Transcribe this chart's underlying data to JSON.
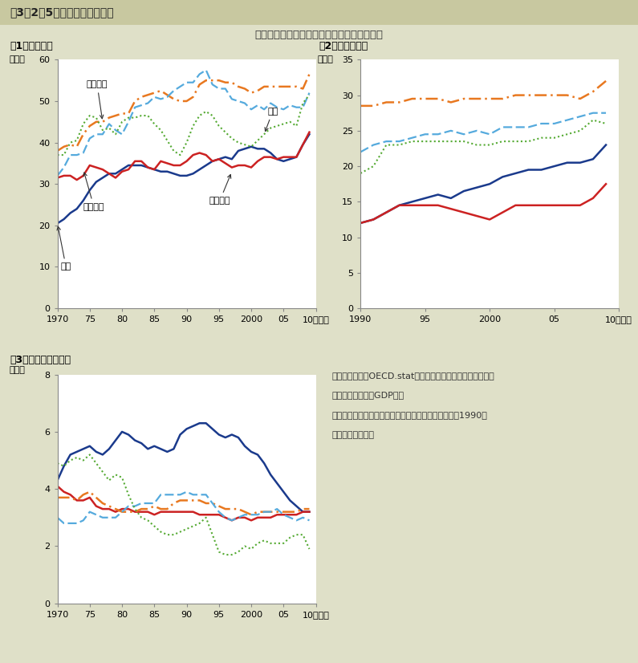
{
  "bg_color": "#dfe0c8",
  "title": "第3－2－5図　歳出の国際比較",
  "subtitle": "各国とも社会保障費を中心に歳出が増加傾向",
  "panel1_title": "（1）歳出総額",
  "panel2_title": "（2）社会保障費",
  "panel3_title": "（3）総固定資本形成",
  "ylabel_pct": "（％）",
  "xsuffix": "10（年）",
  "colors": {
    "japan": "#1a3a8c",
    "usa": "#cc2222",
    "france": "#e87820",
    "italy": "#55aadd",
    "uk": "#55aa33"
  },
  "labels": {
    "japan": "日本",
    "usa": "アメリカ",
    "france": "フランス",
    "italy": "イタリア",
    "uk": "英国"
  },
  "panel1": {
    "years": [
      1970,
      1971,
      1972,
      1973,
      1974,
      1975,
      1976,
      1977,
      1978,
      1979,
      1980,
      1981,
      1982,
      1983,
      1984,
      1985,
      1986,
      1987,
      1988,
      1989,
      1990,
      1991,
      1992,
      1993,
      1994,
      1995,
      1996,
      1997,
      1998,
      1999,
      2000,
      2001,
      2002,
      2003,
      2004,
      2005,
      2006,
      2007,
      2008,
      2009
    ],
    "japan": [
      20.5,
      21.5,
      23.0,
      24.0,
      26.0,
      28.5,
      30.5,
      31.5,
      32.5,
      32.5,
      33.5,
      34.5,
      34.5,
      34.5,
      34.0,
      33.5,
      33.0,
      33.0,
      32.5,
      32.0,
      32.0,
      32.5,
      33.5,
      34.5,
      35.5,
      36.0,
      36.5,
      36.0,
      38.0,
      38.5,
      39.0,
      38.5,
      38.5,
      37.5,
      36.0,
      35.5,
      36.0,
      36.5,
      39.5,
      42.0
    ],
    "usa": [
      31.5,
      32.0,
      32.0,
      31.0,
      32.0,
      34.5,
      34.0,
      33.5,
      32.5,
      31.5,
      33.0,
      33.5,
      35.5,
      35.5,
      34.0,
      33.5,
      35.5,
      35.0,
      34.5,
      34.5,
      35.5,
      37.0,
      37.5,
      37.0,
      35.5,
      36.0,
      35.0,
      34.0,
      34.5,
      34.5,
      34.0,
      35.5,
      36.5,
      36.5,
      36.0,
      36.5,
      36.5,
      36.5,
      39.5,
      42.5
    ],
    "france": [
      38.0,
      39.0,
      39.5,
      39.0,
      42.0,
      44.0,
      45.0,
      45.0,
      46.0,
      46.5,
      47.0,
      47.0,
      50.0,
      51.0,
      51.5,
      52.0,
      52.5,
      51.5,
      50.5,
      50.0,
      50.0,
      51.0,
      54.0,
      55.0,
      55.0,
      55.0,
      54.5,
      54.5,
      53.5,
      53.0,
      52.0,
      52.5,
      53.5,
      53.5,
      53.5,
      53.5,
      53.5,
      53.5,
      53.0,
      56.5
    ],
    "italy": [
      32.0,
      34.0,
      37.0,
      37.0,
      37.5,
      41.0,
      42.0,
      42.0,
      44.5,
      43.0,
      42.0,
      45.0,
      48.5,
      49.0,
      49.5,
      51.0,
      50.5,
      51.0,
      52.5,
      53.5,
      54.5,
      54.5,
      56.5,
      57.5,
      54.0,
      53.0,
      53.0,
      50.5,
      50.0,
      49.5,
      48.0,
      49.0,
      48.0,
      49.5,
      48.5,
      48.0,
      49.0,
      48.5,
      48.5,
      52.0
    ],
    "uk": [
      37.0,
      37.0,
      40.0,
      40.5,
      44.5,
      46.5,
      46.0,
      43.0,
      43.5,
      42.0,
      45.0,
      46.0,
      46.0,
      46.5,
      46.5,
      44.5,
      43.0,
      40.5,
      38.0,
      37.0,
      40.0,
      44.0,
      46.5,
      47.5,
      46.5,
      44.0,
      42.5,
      41.0,
      40.0,
      39.5,
      39.0,
      40.5,
      42.0,
      43.5,
      44.0,
      44.5,
      45.0,
      44.0,
      49.5,
      51.5
    ]
  },
  "panel2": {
    "years": [
      1990,
      1991,
      1992,
      1993,
      1994,
      1995,
      1996,
      1997,
      1998,
      1999,
      2000,
      2001,
      2002,
      2003,
      2004,
      2005,
      2006,
      2007,
      2008,
      2009
    ],
    "japan": [
      12.0,
      12.5,
      13.5,
      14.5,
      15.0,
      15.5,
      16.0,
      15.5,
      16.5,
      17.0,
      17.5,
      18.5,
      19.0,
      19.5,
      19.5,
      20.0,
      20.5,
      20.5,
      21.0,
      23.0
    ],
    "usa": [
      12.0,
      12.5,
      13.5,
      14.5,
      14.5,
      14.5,
      14.5,
      14.0,
      13.5,
      13.0,
      12.5,
      13.5,
      14.5,
      14.5,
      14.5,
      14.5,
      14.5,
      14.5,
      15.5,
      17.5
    ],
    "france": [
      28.5,
      28.5,
      29.0,
      29.0,
      29.5,
      29.5,
      29.5,
      29.0,
      29.5,
      29.5,
      29.5,
      29.5,
      30.0,
      30.0,
      30.0,
      30.0,
      30.0,
      29.5,
      30.5,
      32.0
    ],
    "italy": [
      22.0,
      23.0,
      23.5,
      23.5,
      24.0,
      24.5,
      24.5,
      25.0,
      24.5,
      25.0,
      24.5,
      25.5,
      25.5,
      25.5,
      26.0,
      26.0,
      26.5,
      27.0,
      27.5,
      27.5
    ],
    "uk": [
      19.0,
      20.0,
      23.0,
      23.0,
      23.5,
      23.5,
      23.5,
      23.5,
      23.5,
      23.0,
      23.0,
      23.5,
      23.5,
      23.5,
      24.0,
      24.0,
      24.5,
      25.0,
      26.5,
      26.0
    ]
  },
  "panel3": {
    "years": [
      1970,
      1971,
      1972,
      1973,
      1974,
      1975,
      1976,
      1977,
      1978,
      1979,
      1980,
      1981,
      1982,
      1983,
      1984,
      1985,
      1986,
      1987,
      1988,
      1989,
      1990,
      1991,
      1992,
      1993,
      1994,
      1995,
      1996,
      1997,
      1998,
      1999,
      2000,
      2001,
      2002,
      2003,
      2004,
      2005,
      2006,
      2007,
      2008,
      2009
    ],
    "japan": [
      4.3,
      4.8,
      5.2,
      5.3,
      5.4,
      5.5,
      5.3,
      5.2,
      5.4,
      5.7,
      6.0,
      5.9,
      5.7,
      5.6,
      5.4,
      5.5,
      5.4,
      5.3,
      5.4,
      5.9,
      6.1,
      6.2,
      6.3,
      6.3,
      6.1,
      5.9,
      5.8,
      5.9,
      5.8,
      5.5,
      5.3,
      5.2,
      4.9,
      4.5,
      4.2,
      3.9,
      3.6,
      3.4,
      3.2,
      3.2
    ],
    "usa": [
      4.1,
      3.9,
      3.8,
      3.6,
      3.6,
      3.7,
      3.4,
      3.3,
      3.3,
      3.2,
      3.3,
      3.3,
      3.2,
      3.2,
      3.2,
      3.1,
      3.2,
      3.2,
      3.2,
      3.2,
      3.2,
      3.2,
      3.1,
      3.1,
      3.1,
      3.1,
      3.0,
      2.9,
      3.0,
      3.0,
      2.9,
      3.0,
      3.0,
      3.0,
      3.1,
      3.1,
      3.1,
      3.1,
      3.2,
      3.2
    ],
    "france": [
      3.7,
      3.7,
      3.7,
      3.6,
      3.8,
      3.9,
      3.7,
      3.5,
      3.4,
      3.3,
      3.2,
      3.2,
      3.2,
      3.3,
      3.3,
      3.4,
      3.3,
      3.3,
      3.5,
      3.6,
      3.6,
      3.6,
      3.6,
      3.5,
      3.5,
      3.4,
      3.3,
      3.3,
      3.3,
      3.2,
      3.1,
      3.2,
      3.2,
      3.2,
      3.2,
      3.2,
      3.2,
      3.2,
      3.3,
      3.3
    ],
    "italy": [
      3.0,
      2.8,
      2.8,
      2.8,
      2.9,
      3.2,
      3.1,
      3.0,
      3.0,
      3.0,
      3.2,
      3.4,
      3.4,
      3.5,
      3.5,
      3.5,
      3.8,
      3.8,
      3.8,
      3.8,
      3.9,
      3.8,
      3.8,
      3.8,
      3.5,
      3.2,
      3.0,
      2.9,
      3.0,
      3.1,
      3.1,
      3.1,
      3.2,
      3.2,
      3.3,
      3.1,
      3.0,
      2.9,
      3.0,
      2.9
    ],
    "uk": [
      4.9,
      4.8,
      5.0,
      5.1,
      5.0,
      5.2,
      4.9,
      4.6,
      4.3,
      4.5,
      4.4,
      3.8,
      3.3,
      3.0,
      2.9,
      2.7,
      2.5,
      2.4,
      2.4,
      2.5,
      2.6,
      2.7,
      2.8,
      3.0,
      2.4,
      1.8,
      1.7,
      1.7,
      1.8,
      2.0,
      1.9,
      2.1,
      2.2,
      2.1,
      2.1,
      2.1,
      2.3,
      2.4,
      2.4,
      1.9
    ]
  },
  "note_line1": "（備考）１．　OECD.statにより作成。一般政府ベース。値",
  "note_line2": "　　　　　は名目GDP比。",
  "note_line3": "　　　　２．　データに制約があるため社会保障費は1990年",
  "note_line4": "　　　　　から。"
}
